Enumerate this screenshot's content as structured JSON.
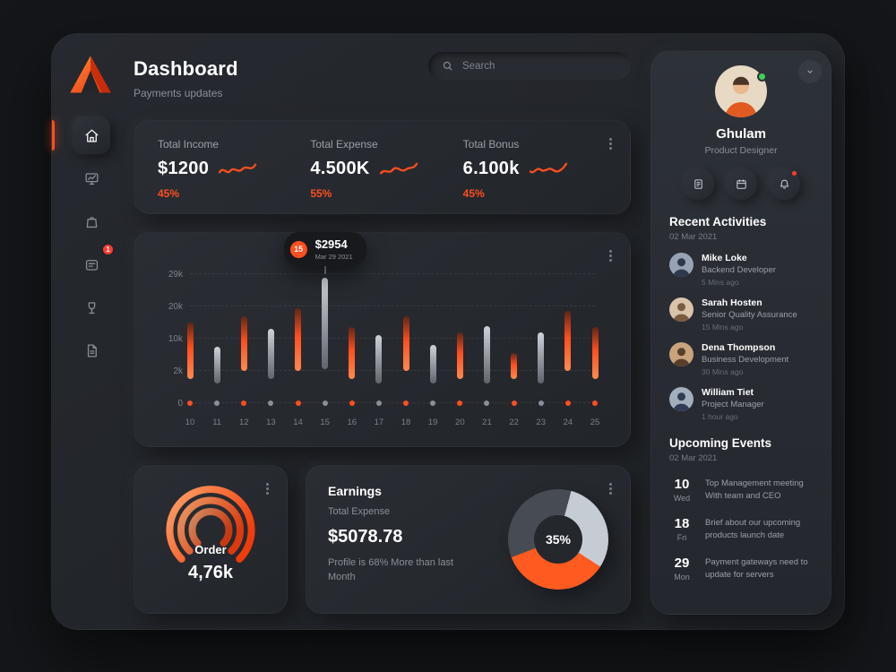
{
  "colors": {
    "accent": "#ff4e1f",
    "positive": "#3ecf5a",
    "bar_gray": "#9aa0a8"
  },
  "header": {
    "title": "Dashboard",
    "subtitle": "Payments updates"
  },
  "search": {
    "placeholder": "Search"
  },
  "sidebar": {
    "items": [
      {
        "icon": "home-icon",
        "active": true
      },
      {
        "icon": "monitor-chart-icon"
      },
      {
        "icon": "shopping-bag-icon"
      },
      {
        "icon": "messages-icon",
        "badge": "1"
      },
      {
        "icon": "trophy-icon"
      },
      {
        "icon": "document-icon"
      }
    ]
  },
  "stats": {
    "items": [
      {
        "label": "Total Income",
        "value": "$1200",
        "percent": "45%"
      },
      {
        "label": "Total Expense",
        "value": "4.500K",
        "percent": "55%"
      },
      {
        "label": "Total Bonus",
        "value": "6.100k",
        "percent": "45%"
      }
    ]
  },
  "chart_data": {
    "type": "bar",
    "x": [
      "10",
      "11",
      "12",
      "13",
      "14",
      "15",
      "16",
      "17",
      "18",
      "19",
      "20",
      "21",
      "22",
      "23",
      "24",
      "25"
    ],
    "ytick_values": [
      0,
      2,
      10,
      20,
      29
    ],
    "ytick_labels": [
      "0",
      "2k",
      "10k",
      "20k",
      "29k"
    ],
    "unit": "k",
    "ylim": [
      0,
      29
    ],
    "grid": "dashed-horizontal",
    "bars": [
      {
        "x": "10",
        "low": 1.5,
        "high": 15,
        "color": "orange"
      },
      {
        "x": "11",
        "low": 1.2,
        "high": 8,
        "color": "gray"
      },
      {
        "x": "12",
        "low": 2,
        "high": 17,
        "color": "orange"
      },
      {
        "x": "13",
        "low": 1.5,
        "high": 13,
        "color": "gray"
      },
      {
        "x": "14",
        "low": 2,
        "high": 19.5,
        "color": "orange"
      },
      {
        "x": "15",
        "low": 2.5,
        "high": 28,
        "color": "gray"
      },
      {
        "x": "16",
        "low": 1.5,
        "high": 13.5,
        "color": "orange"
      },
      {
        "x": "17",
        "low": 1.2,
        "high": 11,
        "color": "gray"
      },
      {
        "x": "18",
        "low": 2,
        "high": 17,
        "color": "orange"
      },
      {
        "x": "19",
        "low": 1.2,
        "high": 8.5,
        "color": "gray"
      },
      {
        "x": "20",
        "low": 1.5,
        "high": 12,
        "color": "orange"
      },
      {
        "x": "21",
        "low": 1.2,
        "high": 14,
        "color": "gray"
      },
      {
        "x": "22",
        "low": 1.5,
        "high": 6.5,
        "color": "orange"
      },
      {
        "x": "23",
        "low": 1.2,
        "high": 12,
        "color": "gray"
      },
      {
        "x": "24",
        "low": 2,
        "high": 18.5,
        "color": "orange"
      },
      {
        "x": "25",
        "low": 1.5,
        "high": 13.5,
        "color": "orange"
      }
    ],
    "tooltip": {
      "x": "15",
      "badge": "15",
      "value": "$2954",
      "date": "Mar 29 2021"
    }
  },
  "order_card": {
    "label": "Order",
    "value": "4,76k"
  },
  "earnings_card": {
    "title": "Earnings",
    "subtitle": "Total Expense",
    "value": "$5078.78",
    "note": "Profile is 68% More than last Month",
    "donut": {
      "center_label": "35%",
      "segments": [
        {
          "name": "light-gray",
          "value": 30,
          "color": "#c6ccd4"
        },
        {
          "name": "orange",
          "value": 35,
          "color": "#ff5a1f"
        },
        {
          "name": "dark-gray",
          "value": 35,
          "color": "#474c54"
        }
      ]
    }
  },
  "profile": {
    "name": "Ghulam",
    "role": "Product Designer",
    "actions": [
      "notes-icon",
      "calendar-icon",
      "notifications-icon"
    ],
    "status": "online"
  },
  "recent_activities": {
    "title": "Recent Activities",
    "date": "02 Mar 2021",
    "items": [
      {
        "name": "Mike Loke",
        "role": "Backend Developer",
        "time": "5 Mins ago"
      },
      {
        "name": "Sarah Hosten",
        "role": "Senior Quality Assurance",
        "time": "15 Mins ago"
      },
      {
        "name": "Dena Thompson",
        "role": "Business Development",
        "time": "30 Mins ago"
      },
      {
        "name": "William Tiet",
        "role": "Project Manager",
        "time": "1 hour ago"
      }
    ]
  },
  "upcoming_events": {
    "title": "Upcoming Events",
    "date": "02 Mar 2021",
    "items": [
      {
        "day": "10",
        "weekday": "Wed",
        "text": "Top Management meeting With team and CEO"
      },
      {
        "day": "18",
        "weekday": "Fri",
        "text": "Brief about our upcoming products launch date"
      },
      {
        "day": "29",
        "weekday": "Mon",
        "text": "Payment gateways need to update for servers"
      }
    ]
  }
}
